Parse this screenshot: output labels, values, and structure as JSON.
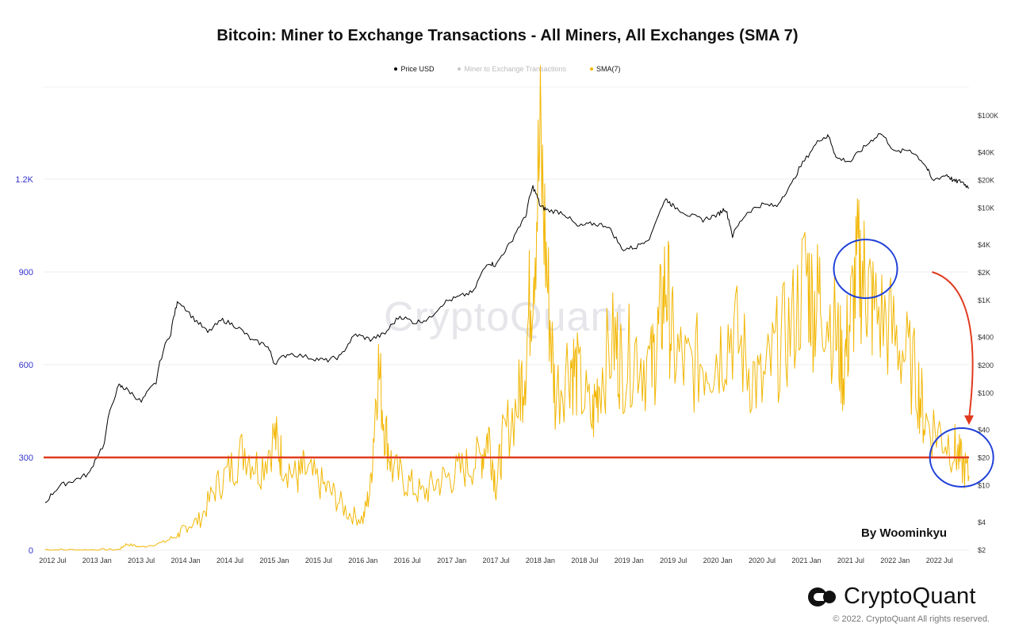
{
  "chart_data": {
    "type": "line",
    "title": "Bitcoin: Miner to Exchange Transactions - All Miners, All Exchanges (SMA 7)",
    "legend": [
      {
        "label": "Price USD",
        "color": "#000000"
      },
      {
        "label": "Miner to Exchange Transactions",
        "color": "#c8c8c8"
      },
      {
        "label": "SMA(7)",
        "color": "#f2b705"
      }
    ],
    "x_ticks": [
      "2012 Jul",
      "2013 Jan",
      "2013 Jul",
      "2014 Jan",
      "2014 Jul",
      "2015 Jan",
      "2015 Jul",
      "2016 Jan",
      "2016 Jul",
      "2017 Jan",
      "2017 Jul",
      "2018 Jan",
      "2018 Jul",
      "2019 Jan",
      "2019 Jul",
      "2020 Jan",
      "2020 Jul",
      "2021 Jan",
      "2021 Jul",
      "2022 Jan",
      "2022 Jul"
    ],
    "x_range": [
      "2012-06",
      "2022-11"
    ],
    "y_left": {
      "ticks": [
        "0",
        "300",
        "600",
        "900",
        "1.2K"
      ],
      "ylim": [
        0,
        1200
      ],
      "color": "#3333cc"
    },
    "y_right": {
      "ticks": [
        "$2",
        "$4",
        "$10",
        "$20",
        "$40",
        "$100",
        "$200",
        "$400",
        "$1K",
        "$2K",
        "$4K",
        "$10K",
        "$20K",
        "$40K",
        "$100K"
      ],
      "scale": "log"
    },
    "grid": "horizontal",
    "series": [
      {
        "name": "Price USD",
        "axis": "right",
        "points": [
          [
            "2012-06",
            6.5
          ],
          [
            "2012-08",
            10
          ],
          [
            "2012-10",
            11.5
          ],
          [
            "2012-12",
            13.5
          ],
          [
            "2013-02",
            28
          ],
          [
            "2013-04",
            120
          ],
          [
            "2013-05",
            110
          ],
          [
            "2013-07",
            80
          ],
          [
            "2013-09",
            130
          ],
          [
            "2013-11",
            450
          ],
          [
            "2013-12",
            1000
          ],
          [
            "2014-02",
            650
          ],
          [
            "2014-04",
            450
          ],
          [
            "2014-06",
            620
          ],
          [
            "2014-08",
            520
          ],
          [
            "2014-10",
            370
          ],
          [
            "2014-12",
            330
          ],
          [
            "2015-01",
            210
          ],
          [
            "2015-03",
            270
          ],
          [
            "2015-06",
            240
          ],
          [
            "2015-08",
            225
          ],
          [
            "2015-10",
            250
          ],
          [
            "2015-12",
            430
          ],
          [
            "2016-02",
            380
          ],
          [
            "2016-04",
            440
          ],
          [
            "2016-06",
            680
          ],
          [
            "2016-08",
            580
          ],
          [
            "2016-10",
            640
          ],
          [
            "2016-12",
            960
          ],
          [
            "2017-02",
            1100
          ],
          [
            "2017-04",
            1250
          ],
          [
            "2017-06",
            2600
          ],
          [
            "2017-07",
            2400
          ],
          [
            "2017-09",
            4200
          ],
          [
            "2017-11",
            8000
          ],
          [
            "2017-12",
            17000
          ],
          [
            "2018-01",
            10500
          ],
          [
            "2018-02",
            9500
          ],
          [
            "2018-04",
            9000
          ],
          [
            "2018-06",
            6300
          ],
          [
            "2018-08",
            6800
          ],
          [
            "2018-10",
            6500
          ],
          [
            "2018-12",
            3600
          ],
          [
            "2019-02",
            3800
          ],
          [
            "2019-04",
            5000
          ],
          [
            "2019-06",
            12500
          ],
          [
            "2019-07",
            10500
          ],
          [
            "2019-09",
            8500
          ],
          [
            "2019-11",
            7500
          ],
          [
            "2020-01",
            8500
          ],
          [
            "2020-02",
            10000
          ],
          [
            "2020-03",
            5000
          ],
          [
            "2020-05",
            9000
          ],
          [
            "2020-07",
            11000
          ],
          [
            "2020-09",
            10500
          ],
          [
            "2020-11",
            18000
          ],
          [
            "2021-01",
            35000
          ],
          [
            "2021-03",
            57000
          ],
          [
            "2021-04",
            60000
          ],
          [
            "2021-05",
            35000
          ],
          [
            "2021-07",
            32000
          ],
          [
            "2021-09",
            47000
          ],
          [
            "2021-11",
            65000
          ],
          [
            "2022-01",
            40000
          ],
          [
            "2022-03",
            43000
          ],
          [
            "2022-05",
            30000
          ],
          [
            "2022-06",
            20000
          ],
          [
            "2022-08",
            23000
          ],
          [
            "2022-09",
            19500
          ],
          [
            "2022-10",
            19500
          ],
          [
            "2022-11",
            16500
          ]
        ]
      },
      {
        "name": "SMA(7)",
        "axis": "left",
        "points": [
          [
            "2012-06",
            2
          ],
          [
            "2012-09",
            1
          ],
          [
            "2013-01",
            1
          ],
          [
            "2013-04",
            2
          ],
          [
            "2013-05",
            20
          ],
          [
            "2013-07",
            10
          ],
          [
            "2013-10",
            25
          ],
          [
            "2013-12",
            50
          ],
          [
            "2014-01",
            75
          ],
          [
            "2014-03",
            100
          ],
          [
            "2014-05",
            200
          ],
          [
            "2014-07",
            260
          ],
          [
            "2014-09",
            330
          ],
          [
            "2014-11",
            260
          ],
          [
            "2015-01",
            370
          ],
          [
            "2015-02",
            300
          ],
          [
            "2015-04",
            230
          ],
          [
            "2015-05",
            260
          ],
          [
            "2015-07",
            220
          ],
          [
            "2015-09",
            180
          ],
          [
            "2015-11",
            120
          ],
          [
            "2016-01",
            100
          ],
          [
            "2016-02",
            200
          ],
          [
            "2016-03",
            610
          ],
          [
            "2016-04",
            390
          ],
          [
            "2016-05",
            260
          ],
          [
            "2016-07",
            220
          ],
          [
            "2016-09",
            180
          ],
          [
            "2016-11",
            220
          ],
          [
            "2017-01",
            240
          ],
          [
            "2017-03",
            270
          ],
          [
            "2017-05",
            300
          ],
          [
            "2017-06",
            380
          ],
          [
            "2017-07",
            210
          ],
          [
            "2017-08",
            360
          ],
          [
            "2017-10",
            480
          ],
          [
            "2017-11",
            620
          ],
          [
            "2017-12",
            940
          ],
          [
            "2018-01",
            1290
          ],
          [
            "2018-02",
            850
          ],
          [
            "2018-03",
            500
          ],
          [
            "2018-05",
            620
          ],
          [
            "2018-06",
            560
          ],
          [
            "2018-08",
            420
          ],
          [
            "2018-09",
            560
          ],
          [
            "2018-11",
            680
          ],
          [
            "2018-12",
            600
          ],
          [
            "2019-02",
            650
          ],
          [
            "2019-04",
            580
          ],
          [
            "2019-05",
            700
          ],
          [
            "2019-06",
            880
          ],
          [
            "2019-07",
            650
          ],
          [
            "2019-09",
            580
          ],
          [
            "2019-11",
            620
          ],
          [
            "2020-01",
            640
          ],
          [
            "2020-03",
            720
          ],
          [
            "2020-05",
            600
          ],
          [
            "2020-07",
            520
          ],
          [
            "2020-09",
            650
          ],
          [
            "2020-11",
            720
          ],
          [
            "2021-01",
            900
          ],
          [
            "2021-02",
            780
          ],
          [
            "2021-03",
            840
          ],
          [
            "2021-05",
            700
          ],
          [
            "2021-06",
            580
          ],
          [
            "2021-07",
            760
          ],
          [
            "2021-08",
            920
          ],
          [
            "2021-09",
            880
          ],
          [
            "2021-10",
            780
          ],
          [
            "2021-12",
            730
          ],
          [
            "2022-02",
            650
          ],
          [
            "2022-04",
            550
          ],
          [
            "2022-05",
            420
          ],
          [
            "2022-07",
            380
          ],
          [
            "2022-09",
            330
          ],
          [
            "2022-10",
            280
          ],
          [
            "2022-11",
            240
          ]
        ]
      }
    ],
    "annotations": {
      "hline": {
        "value": 300,
        "axis": "left",
        "color": "#e03a1e"
      },
      "circles": [
        {
          "x": "2021-09",
          "y": 910
        },
        {
          "x": "2022-10",
          "y": 300
        }
      ],
      "arrow": {
        "from": [
          "2022-06",
          900
        ],
        "to": [
          "2022-11",
          400
        ],
        "color": "#e03a1e"
      }
    }
  },
  "signature": "By Woominkyu",
  "watermark": "CryptoQuant",
  "brand": {
    "name": "CryptoQuant",
    "copyright": "© 2022. CryptoQuant All rights reserved."
  }
}
